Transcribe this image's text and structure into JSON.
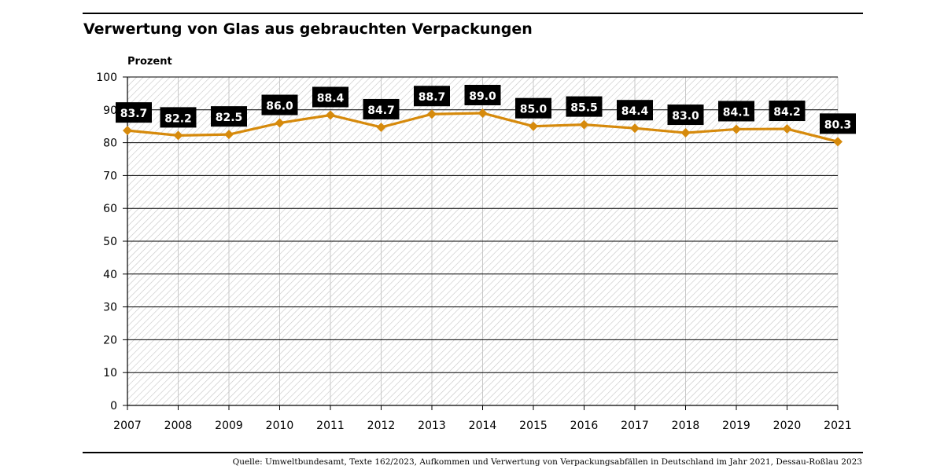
{
  "title": "Verwertung von Glas aus gebrauchten Verpackungen",
  "source": "Quelle: Umweltbundesamt, Texte 162/2023, Aufkommen und Verwertung von Verpackungsabfällen in Deutschland im Jahr 2021, Dessau-Roßlau 2023",
  "chart_data": {
    "type": "line",
    "title": "Verwertung von Glas aus gebrauchten Verpackungen",
    "xlabel": "",
    "ylabel": "Prozent",
    "ylim": [
      0,
      100
    ],
    "yticks": [
      0,
      10,
      20,
      30,
      40,
      50,
      60,
      70,
      80,
      90,
      100
    ],
    "grid": true,
    "legend": "none",
    "x": [
      "2007",
      "2008",
      "2009",
      "2010",
      "2011",
      "2012",
      "2013",
      "2014",
      "2015",
      "2016",
      "2017",
      "2018",
      "2019",
      "2020",
      "2021"
    ],
    "series": [
      {
        "values": [
          83.7,
          82.2,
          82.5,
          86.0,
          88.4,
          84.7,
          88.7,
          89.0,
          85.0,
          85.5,
          84.4,
          83.0,
          84.1,
          84.2,
          80.3
        ],
        "labels": [
          "83.7",
          "82.2",
          "82.5",
          "86.0",
          "88.4",
          "84.7",
          "88.7",
          "89.0",
          "85.0",
          "85.5",
          "84.4",
          "83.0",
          "84.1",
          "84.2",
          "80.3"
        ],
        "color": "#d68a0c"
      }
    ],
    "colors": {
      "line": "#d68a0c",
      "label_bg": "#000000",
      "label_text": "#ffffff",
      "grid": "#000000",
      "hatch": "#bdbdbd",
      "vgrid": "#c8c8c8"
    }
  }
}
